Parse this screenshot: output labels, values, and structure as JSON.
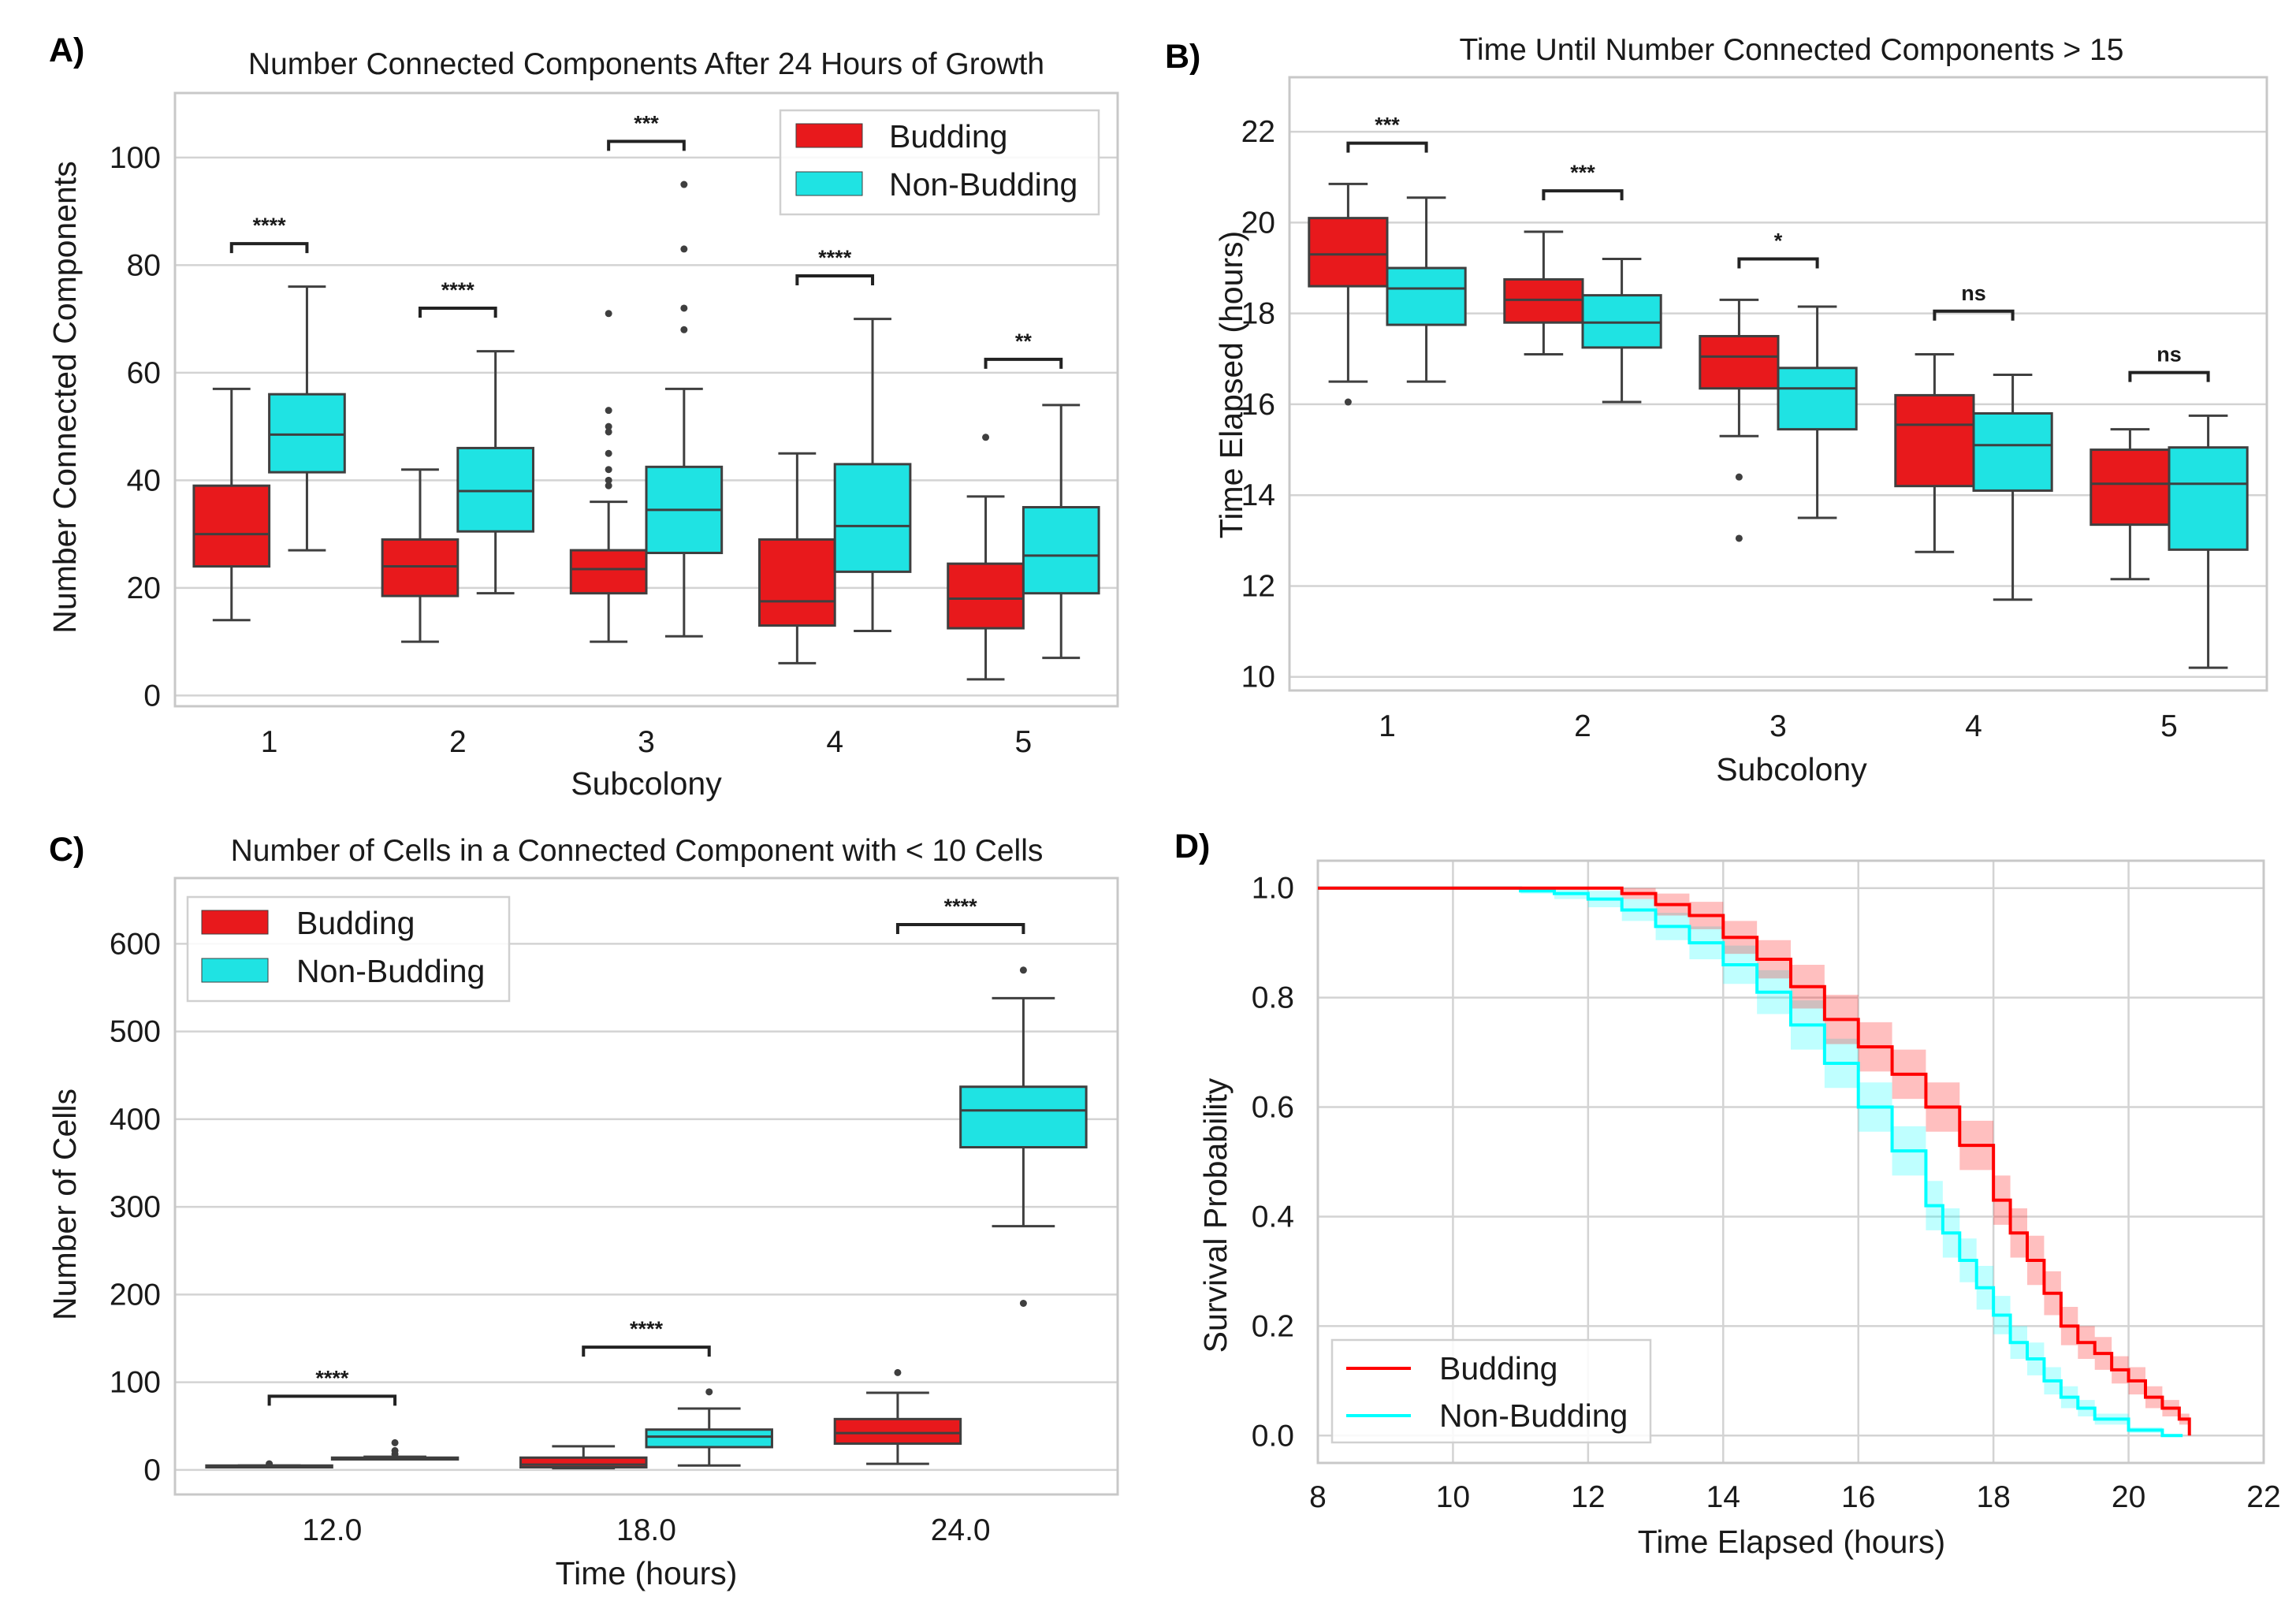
{
  "colors": {
    "budding": "#e8191c",
    "non_budding": "#1fe3e3",
    "box_edge": "#3f3f3f",
    "km_budding": "#ff0000",
    "km_non_budding": "#00ffff"
  },
  "chart_data": [
    {
      "panel": "A)",
      "type": "box",
      "title": "Number Connected Components After 24 Hours of Growth",
      "xlabel": "Subcolony",
      "ylabel": "Number Connected Components",
      "ylim": [
        -2,
        112
      ],
      "yticks": [
        0,
        20,
        40,
        60,
        80,
        100
      ],
      "categories": [
        "1",
        "2",
        "3",
        "4",
        "5"
      ],
      "legend": {
        "position": "top-right",
        "entries": [
          "Budding",
          "Non-Budding"
        ]
      },
      "series": [
        {
          "name": "Budding",
          "boxes": [
            {
              "whislo": 14,
              "q1": 24,
              "med": 30,
              "q3": 39,
              "whishi": 57,
              "fliers": []
            },
            {
              "whislo": 10,
              "q1": 18.5,
              "med": 24,
              "q3": 29,
              "whishi": 42,
              "fliers": []
            },
            {
              "whislo": 10,
              "q1": 19,
              "med": 23.5,
              "q3": 27,
              "whishi": 36,
              "fliers": [
                39,
                40,
                42,
                45,
                49,
                50,
                53,
                71
              ]
            },
            {
              "whislo": 6,
              "q1": 13,
              "med": 17.5,
              "q3": 29,
              "whishi": 45,
              "fliers": []
            },
            {
              "whislo": 3,
              "q1": 12.5,
              "med": 18,
              "q3": 24.5,
              "whishi": 37,
              "fliers": [
                48
              ]
            }
          ]
        },
        {
          "name": "Non-Budding",
          "boxes": [
            {
              "whislo": 27,
              "q1": 41.5,
              "med": 48.5,
              "q3": 56,
              "whishi": 76,
              "fliers": []
            },
            {
              "whislo": 19,
              "q1": 30.5,
              "med": 38,
              "q3": 46,
              "whishi": 64,
              "fliers": []
            },
            {
              "whislo": 11,
              "q1": 26.5,
              "med": 34.5,
              "q3": 42.5,
              "whishi": 57,
              "fliers": [
                68,
                72,
                83,
                95
              ]
            },
            {
              "whislo": 12,
              "q1": 23,
              "med": 31.5,
              "q3": 43,
              "whishi": 70,
              "fliers": []
            },
            {
              "whislo": 7,
              "q1": 19,
              "med": 26,
              "q3": 35,
              "whishi": 54,
              "fliers": []
            }
          ]
        }
      ],
      "annotations": [
        {
          "category": "1",
          "y": 84,
          "text": "****"
        },
        {
          "category": "2",
          "y": 72,
          "text": "****"
        },
        {
          "category": "3",
          "y": 103,
          "text": "***"
        },
        {
          "category": "4",
          "y": 78,
          "text": "****"
        },
        {
          "category": "5",
          "y": 62.5,
          "text": "**"
        }
      ]
    },
    {
      "panel": "B)",
      "type": "box",
      "title": "Time Until Number Connected Components > 15",
      "xlabel": "Subcolony",
      "ylabel": "Time Elapsed (hours)",
      "ylim": [
        9.7,
        23.2
      ],
      "yticks": [
        10,
        12,
        14,
        16,
        18,
        20,
        22
      ],
      "categories": [
        "1",
        "2",
        "3",
        "4",
        "5"
      ],
      "series": [
        {
          "name": "Budding",
          "boxes": [
            {
              "whislo": 16.5,
              "q1": 18.6,
              "med": 19.3,
              "q3": 20.1,
              "whishi": 20.85,
              "fliers": [
                16.05
              ]
            },
            {
              "whislo": 17.1,
              "q1": 17.8,
              "med": 18.3,
              "q3": 18.75,
              "whishi": 19.8,
              "fliers": []
            },
            {
              "whislo": 15.3,
              "q1": 16.35,
              "med": 17.05,
              "q3": 17.5,
              "whishi": 18.3,
              "fliers": [
                14.4,
                13.05
              ]
            },
            {
              "whislo": 12.75,
              "q1": 14.2,
              "med": 15.55,
              "q3": 16.2,
              "whishi": 17.1,
              "fliers": []
            },
            {
              "whislo": 12.15,
              "q1": 13.35,
              "med": 14.25,
              "q3": 15.0,
              "whishi": 15.45,
              "fliers": []
            }
          ]
        },
        {
          "name": "Non-Budding",
          "boxes": [
            {
              "whislo": 16.5,
              "q1": 17.75,
              "med": 18.55,
              "q3": 19.0,
              "whishi": 20.55,
              "fliers": []
            },
            {
              "whislo": 16.05,
              "q1": 17.25,
              "med": 17.8,
              "q3": 18.4,
              "whishi": 19.2,
              "fliers": []
            },
            {
              "whislo": 13.5,
              "q1": 15.45,
              "med": 16.35,
              "q3": 16.8,
              "whishi": 18.15,
              "fliers": []
            },
            {
              "whislo": 11.7,
              "q1": 14.1,
              "med": 15.1,
              "q3": 15.8,
              "whishi": 16.65,
              "fliers": []
            },
            {
              "whislo": 10.2,
              "q1": 12.8,
              "med": 14.25,
              "q3": 15.05,
              "whishi": 15.75,
              "fliers": []
            }
          ]
        }
      ],
      "annotations": [
        {
          "category": "1",
          "y": 21.75,
          "text": "***"
        },
        {
          "category": "2",
          "y": 20.7,
          "text": "***"
        },
        {
          "category": "3",
          "y": 19.2,
          "text": "*"
        },
        {
          "category": "4",
          "y": 18.05,
          "text": "ns"
        },
        {
          "category": "5",
          "y": 16.7,
          "text": "ns"
        }
      ]
    },
    {
      "panel": "C)",
      "type": "box",
      "title": "Number of Cells in a Connected Component with < 10 Cells",
      "xlabel": "Time (hours)",
      "ylabel": "Number of Cells",
      "ylim": [
        -28,
        675
      ],
      "yticks": [
        0,
        100,
        200,
        300,
        400,
        500,
        600
      ],
      "categories": [
        "12.0",
        "18.0",
        "24.0"
      ],
      "legend": {
        "position": "top-left",
        "entries": [
          "Budding",
          "Non-Budding"
        ]
      },
      "series": [
        {
          "name": "Budding",
          "boxes": [
            {
              "whislo": 3,
              "q1": 3,
              "med": 4,
              "q3": 5,
              "whishi": 5,
              "fliers": [
                7
              ]
            },
            {
              "whislo": 2,
              "q1": 3,
              "med": 6,
              "q3": 14,
              "whishi": 27,
              "fliers": []
            },
            {
              "whislo": 7,
              "q1": 30,
              "med": 42,
              "q3": 58,
              "whishi": 88,
              "fliers": [
                111
              ]
            }
          ]
        },
        {
          "name": "Non-Budding",
          "boxes": [
            {
              "whislo": 12,
              "q1": 12,
              "med": 13,
              "q3": 14,
              "whishi": 15,
              "fliers": [
                18,
                22,
                31
              ]
            },
            {
              "whislo": 5,
              "q1": 26,
              "med": 38,
              "q3": 46,
              "whishi": 70,
              "fliers": [
                89
              ]
            },
            {
              "whislo": 278,
              "q1": 368,
              "med": 410,
              "q3": 437,
              "whishi": 538,
              "fliers": [
                190,
                570
              ]
            }
          ]
        }
      ],
      "annotations": [
        {
          "category": "12.0",
          "y": 84,
          "text": "****"
        },
        {
          "category": "18.0",
          "y": 140,
          "text": "****"
        },
        {
          "category": "24.0",
          "y": 622,
          "text": "****"
        }
      ]
    },
    {
      "panel": "D)",
      "type": "line",
      "subtype": "kaplan-meier step with confidence band",
      "title": "",
      "xlabel": "Time Elapsed (hours)",
      "ylabel": "Survival Probability",
      "xlim": [
        8,
        22
      ],
      "ylim": [
        -0.05,
        1.05
      ],
      "xticks": [
        8,
        10,
        12,
        14,
        16,
        18,
        20,
        22
      ],
      "yticks": [
        0.0,
        0.2,
        0.4,
        0.6,
        0.8,
        1.0
      ],
      "ytick_labels": [
        "0.0",
        "0.2",
        "0.4",
        "0.6",
        "0.8",
        "1.0"
      ],
      "legend": {
        "position": "bottom-left",
        "entries": [
          "Budding",
          "Non-Budding"
        ]
      },
      "series": [
        {
          "name": "Budding",
          "x": [
            8,
            12.2,
            12.5,
            13,
            13.5,
            14,
            14.5,
            15,
            15.5,
            16,
            16.5,
            17,
            17.5,
            18,
            18.25,
            18.5,
            18.75,
            19,
            19.25,
            19.5,
            19.75,
            20,
            20.25,
            20.5,
            20.75,
            20.9
          ],
          "y": [
            1.0,
            1.0,
            0.99,
            0.97,
            0.95,
            0.91,
            0.87,
            0.82,
            0.76,
            0.71,
            0.66,
            0.6,
            0.53,
            0.43,
            0.37,
            0.32,
            0.26,
            0.2,
            0.17,
            0.15,
            0.12,
            0.1,
            0.07,
            0.05,
            0.03,
            0.0
          ],
          "ci_halfwidth": [
            0,
            0,
            0.01,
            0.02,
            0.025,
            0.03,
            0.035,
            0.04,
            0.045,
            0.045,
            0.045,
            0.045,
            0.045,
            0.045,
            0.045,
            0.045,
            0.04,
            0.035,
            0.03,
            0.03,
            0.025,
            0.025,
            0.02,
            0.015,
            0.01,
            0
          ]
        },
        {
          "name": "Non-Budding",
          "x": [
            8,
            10.2,
            11,
            11.5,
            12,
            12.5,
            13,
            13.5,
            14,
            14.5,
            15,
            15.5,
            16,
            16.5,
            17,
            17.25,
            17.5,
            17.75,
            18,
            18.25,
            18.5,
            18.75,
            19,
            19.25,
            19.5,
            20,
            20.5,
            20.8
          ],
          "y": [
            1.0,
            1.0,
            0.995,
            0.99,
            0.98,
            0.96,
            0.93,
            0.9,
            0.86,
            0.81,
            0.75,
            0.68,
            0.6,
            0.52,
            0.42,
            0.37,
            0.32,
            0.27,
            0.22,
            0.17,
            0.14,
            0.1,
            0.07,
            0.05,
            0.03,
            0.01,
            0.0,
            0.0
          ],
          "ci_halfwidth": [
            0,
            0,
            0.005,
            0.01,
            0.015,
            0.02,
            0.025,
            0.03,
            0.035,
            0.04,
            0.045,
            0.045,
            0.045,
            0.045,
            0.045,
            0.045,
            0.04,
            0.04,
            0.035,
            0.03,
            0.03,
            0.025,
            0.02,
            0.015,
            0.01,
            0.005,
            0,
            0
          ]
        }
      ]
    }
  ]
}
